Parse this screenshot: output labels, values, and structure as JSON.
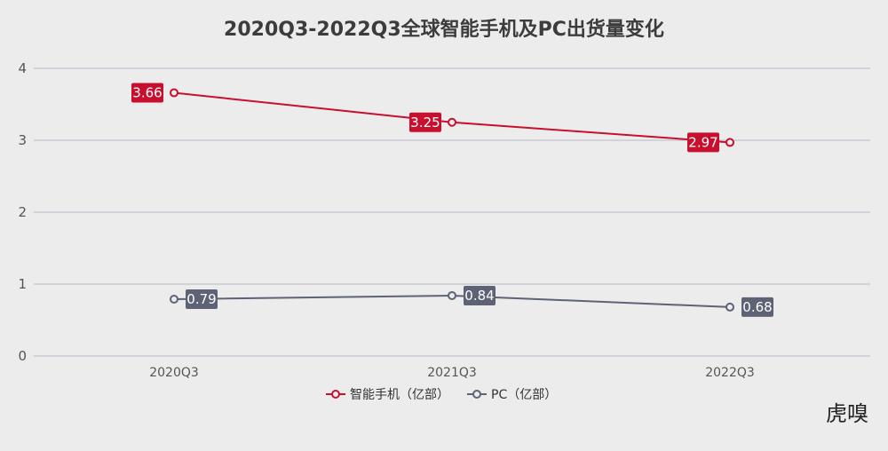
{
  "chart_data": {
    "type": "line",
    "title": "2020Q3-2022Q3全球智能手机及PC出货量变化",
    "categories": [
      "2020Q3",
      "2021Q3",
      "2022Q3"
    ],
    "ylim": [
      0,
      4
    ],
    "yticks": [
      0,
      1,
      2,
      3,
      4
    ],
    "grid": true,
    "legend_position": "bottom-center",
    "series": [
      {
        "name": "智能手机（亿部）",
        "values": [
          3.66,
          3.25,
          2.97
        ],
        "labels": [
          "3.66",
          "3.25",
          "2.97"
        ],
        "color": "#c8102e"
      },
      {
        "name": "PC（亿部）",
        "values": [
          0.79,
          0.84,
          0.68
        ],
        "labels": [
          "0.79",
          "0.84",
          "0.68"
        ],
        "color": "#5d6275"
      }
    ]
  },
  "watermark": {
    "text": "虎嗅"
  },
  "colors": {
    "background": "#ececec",
    "grid": "#b9b9c9"
  }
}
